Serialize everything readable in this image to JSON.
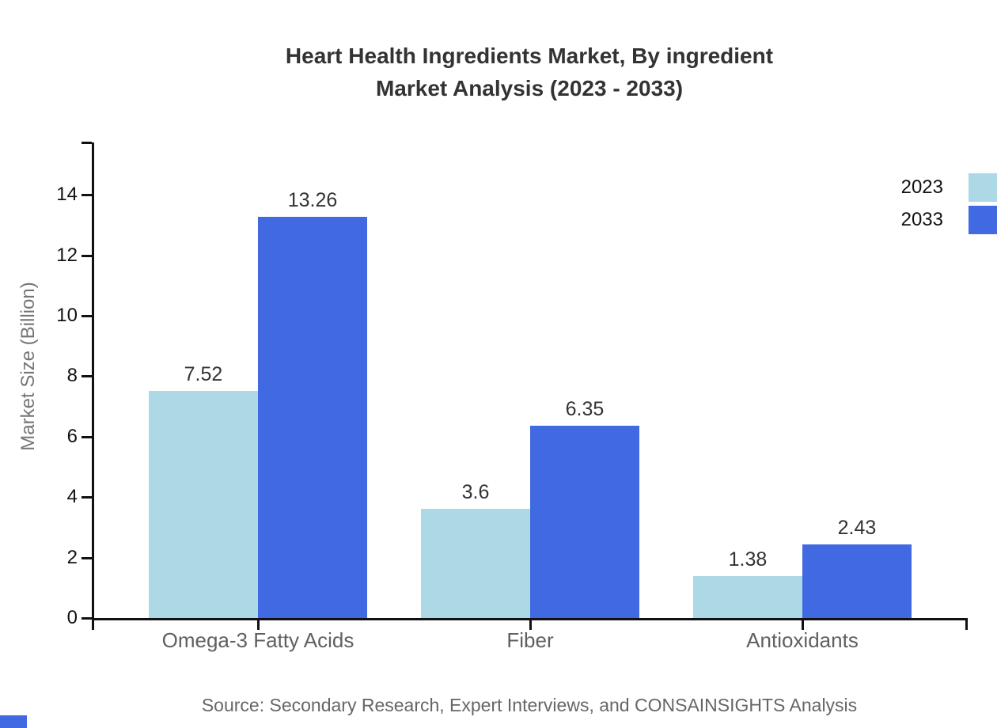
{
  "title": {
    "line1": "Heart Health Ingredients Market, By ingredient",
    "line2": "Market Analysis (2023 - 2033)"
  },
  "chart_data": {
    "type": "bar",
    "categories": [
      "Omega-3 Fatty Acids",
      "Fiber",
      "Antioxidants"
    ],
    "series": [
      {
        "name": "2023",
        "color": "#ADD8E6",
        "values": [
          7.52,
          3.6,
          1.38
        ],
        "labels": [
          "7.52",
          "3.6",
          "1.38"
        ]
      },
      {
        "name": "2033",
        "color": "#4169E1",
        "values": [
          13.26,
          6.35,
          2.43
        ],
        "labels": [
          "13.26",
          "6.35",
          "2.43"
        ]
      }
    ],
    "xlabel": "",
    "ylabel": "Market Size (Billion)",
    "ylim": [
      0,
      15.7
    ],
    "yticks": [
      0,
      2,
      4,
      6,
      8,
      10,
      12,
      14
    ],
    "grid": false,
    "legend_position": "top-right"
  },
  "source": {
    "text": "Source: Secondary Research, Expert Interviews, and CONSAINSIGHTS Analysis"
  },
  "colors": {
    "series_2023": "#ADD8E6",
    "series_2033": "#4169E1",
    "axis": "#111111",
    "brand_mark": "#4169E1"
  }
}
